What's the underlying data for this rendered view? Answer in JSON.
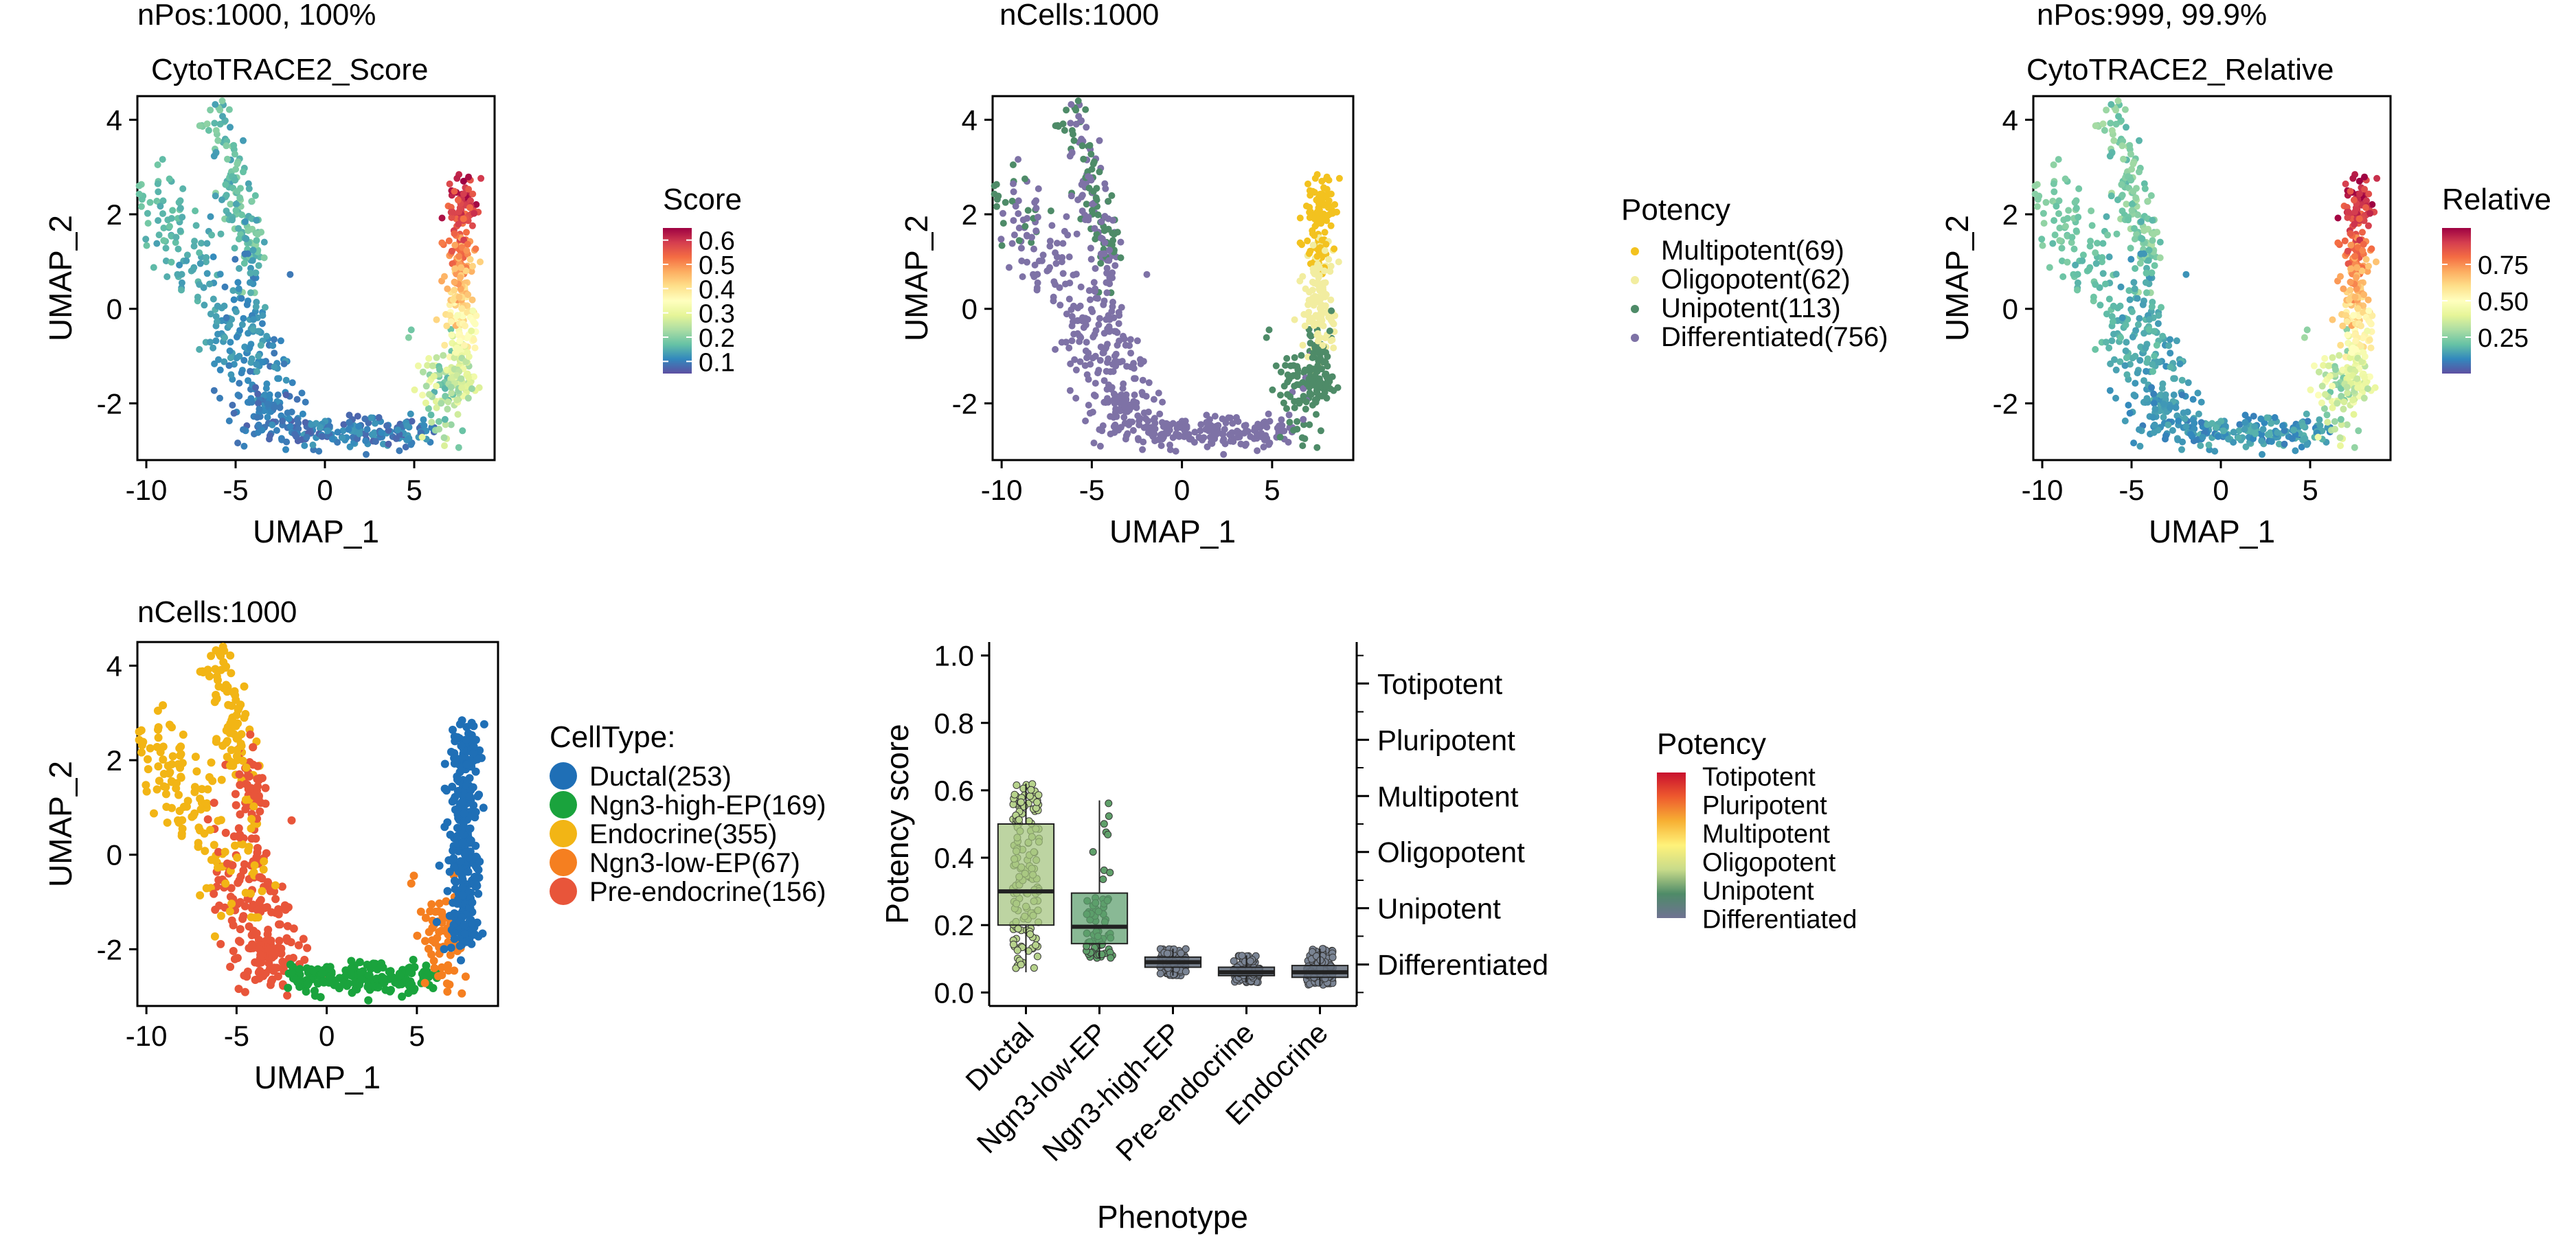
{
  "colors": {
    "spectral": [
      "#5E4FA2",
      "#3288BD",
      "#66C2A5",
      "#ABDDA4",
      "#E6F598",
      "#FFFFBF",
      "#FEE08B",
      "#FDAE61",
      "#F46D43",
      "#D53E4F",
      "#9E0142"
    ],
    "potency": {
      "Differentiated": "#7E72A6",
      "Unipotent": "#4E8B68",
      "Oligopotent": "#F2EDA0",
      "Multipotent": "#F3C21F"
    },
    "celltype": {
      "Ductal": "#1F6FB6",
      "Ngn3-high-EP": "#1AA33D",
      "Endocrine": "#F2B515",
      "Ngn3-low-EP": "#F57F20",
      "Pre-endocrine": "#E8553A"
    },
    "box": {
      "Ductal": "#A3C47E",
      "Ngn3-low-EP": "#5C9E6C",
      "Ngn3-high-EP": "#646E7E",
      "Pre-endocrine": "#646E7E",
      "Endocrine": "#646E7E"
    }
  },
  "chart_data": [
    {
      "id": "score",
      "type": "scatter",
      "header": "nPos:1000, 100%",
      "title": "CytoTRACE2_Score",
      "xlabel": "UMAP_1",
      "ylabel": "UMAP_2",
      "xlim": [
        -10.5,
        9.5
      ],
      "ylim": [
        -3.2,
        4.5
      ],
      "xticks": [
        -10,
        -5,
        0,
        5
      ],
      "xtick_labels": [
        "-10",
        "-5",
        "0",
        "5"
      ],
      "yticks": [
        -2,
        0,
        2,
        4
      ],
      "ytick_labels": [
        "-2",
        "0",
        "2",
        "4"
      ],
      "color_by": "score",
      "legend": {
        "type": "colorbar",
        "title": "Score",
        "range": [
          0.05,
          0.65
        ],
        "ticks": [
          0.1,
          0.2,
          0.3,
          0.4,
          0.5,
          0.6
        ],
        "tick_labels": [
          "0.1",
          "0.2",
          "0.3",
          "0.4",
          "0.5",
          "0.6"
        ]
      }
    },
    {
      "id": "potency",
      "type": "scatter",
      "header": "nCells:1000",
      "title": "",
      "xlabel": "UMAP_1",
      "ylabel": "UMAP_2",
      "xlim": [
        -10.5,
        9.5
      ],
      "ylim": [
        -3.2,
        4.5
      ],
      "xticks": [
        -10,
        -5,
        0,
        5
      ],
      "xtick_labels": [
        "-10",
        "-5",
        "0",
        "5"
      ],
      "yticks": [
        -2,
        0,
        2,
        4
      ],
      "ytick_labels": [
        "-2",
        "0",
        "2",
        "4"
      ],
      "color_by": "potency",
      "legend": {
        "type": "categorical",
        "title": "Potency",
        "items": [
          {
            "key": "Multipotent",
            "label": "Multipotent(69)"
          },
          {
            "key": "Oligopotent",
            "label": "Oligopotent(62)"
          },
          {
            "key": "Unipotent",
            "label": "Unipotent(113)"
          },
          {
            "key": "Differentiated",
            "label": "Differentiated(756)"
          }
        ]
      }
    },
    {
      "id": "relative",
      "type": "scatter",
      "header": "nPos:999, 99.9%",
      "title": "CytoTRACE2_Relative",
      "xlabel": "UMAP_1",
      "ylabel": "UMAP_2",
      "xlim": [
        -10.5,
        9.5
      ],
      "ylim": [
        -3.2,
        4.5
      ],
      "xticks": [
        -10,
        -5,
        0,
        5
      ],
      "xtick_labels": [
        "-10",
        "-5",
        "0",
        "5"
      ],
      "yticks": [
        -2,
        0,
        2,
        4
      ],
      "ytick_labels": [
        "-2",
        "0",
        "2",
        "4"
      ],
      "color_by": "relative",
      "legend": {
        "type": "colorbar",
        "title": "Relative",
        "range": [
          0.0,
          1.0
        ],
        "ticks": [
          0.25,
          0.5,
          0.75
        ],
        "tick_labels": [
          "0.25",
          "0.50",
          "0.75"
        ]
      }
    },
    {
      "id": "celltype",
      "type": "scatter",
      "header": "nCells:1000",
      "title": "",
      "xlabel": "UMAP_1",
      "ylabel": "UMAP_2",
      "xlim": [
        -10.5,
        9.5
      ],
      "ylim": [
        -3.2,
        4.5
      ],
      "xticks": [
        -10,
        -5,
        0,
        5
      ],
      "xtick_labels": [
        "-10",
        "-5",
        "0",
        "5"
      ],
      "yticks": [
        -2,
        0,
        2,
        4
      ],
      "ytick_labels": [
        "-2",
        "0",
        "2",
        "4"
      ],
      "color_by": "celltype",
      "legend": {
        "type": "categorical",
        "title": "CellType:",
        "items": [
          {
            "key": "Ductal",
            "label": "Ductal(253)"
          },
          {
            "key": "Ngn3-high-EP",
            "label": "Ngn3-high-EP(169)"
          },
          {
            "key": "Endocrine",
            "label": "Endocrine(355)"
          },
          {
            "key": "Ngn3-low-EP",
            "label": "Ngn3-low-EP(67)"
          },
          {
            "key": "Pre-endocrine",
            "label": "Pre-endocrine(156)"
          }
        ]
      }
    },
    {
      "id": "boxplot",
      "type": "box",
      "xlabel": "Phenotype",
      "ylabel": "Potency score",
      "ylim": [
        -0.04,
        1.04
      ],
      "yticks": [
        0.0,
        0.2,
        0.4,
        0.6,
        0.8,
        1.0
      ],
      "ytick_labels": [
        "0.0",
        "0.2",
        "0.4",
        "0.6",
        "0.8",
        "1.0"
      ],
      "categories": [
        "Ductal",
        "Ngn3-low-EP",
        "Ngn3-high-EP",
        "Pre-endocrine",
        "Endocrine"
      ],
      "boxes": [
        {
          "name": "Ductal",
          "q1": 0.2,
          "median": 0.3,
          "q3": 0.5,
          "min": 0.06,
          "max": 0.62,
          "n": 253
        },
        {
          "name": "Ngn3-low-EP",
          "q1": 0.145,
          "median": 0.195,
          "q3": 0.295,
          "min": 0.1,
          "max": 0.57,
          "n": 67
        },
        {
          "name": "Ngn3-high-EP",
          "q1": 0.075,
          "median": 0.09,
          "q3": 0.105,
          "min": 0.05,
          "max": 0.13,
          "n": 169
        },
        {
          "name": "Pre-endocrine",
          "q1": 0.05,
          "median": 0.06,
          "q3": 0.075,
          "min": 0.03,
          "max": 0.11,
          "n": 156
        },
        {
          "name": "Endocrine",
          "q1": 0.045,
          "median": 0.06,
          "q3": 0.08,
          "min": 0.02,
          "max": 0.13,
          "n": 355
        }
      ],
      "right_axis": {
        "ticks": [
          0.083,
          0.25,
          0.417,
          0.583,
          0.75,
          0.917
        ],
        "labels": [
          "Differentiated",
          "Unipotent",
          "Oligopotent",
          "Multipotent",
          "Pluripotent",
          "Totipotent"
        ],
        "boundaries": [
          0.0,
          0.167,
          0.333,
          0.5,
          0.667,
          0.833,
          1.0
        ]
      },
      "legend": {
        "type": "colorbar",
        "title": "Potency",
        "labels": [
          "Totipotent",
          "Pluripotent",
          "Multipotent",
          "Oligopotent",
          "Unipotent",
          "Differentiated"
        ]
      }
    }
  ]
}
